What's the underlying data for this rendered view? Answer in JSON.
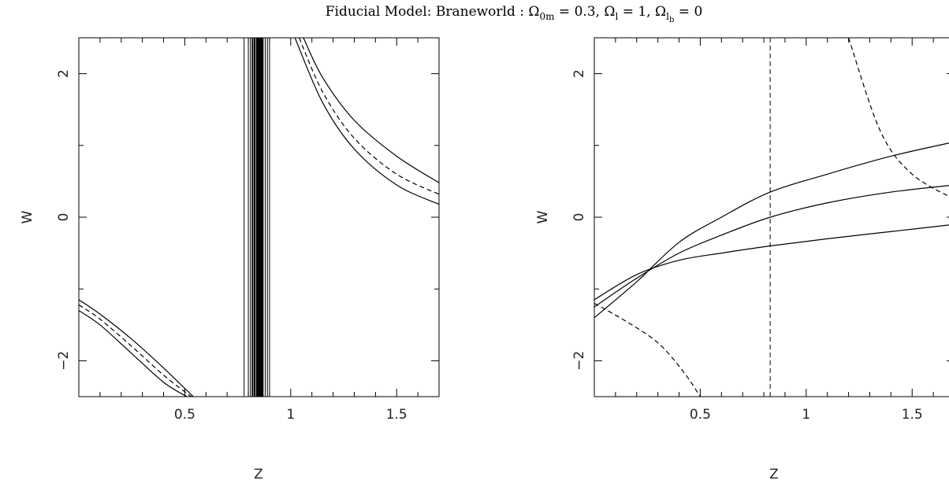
{
  "title": "Fiducial Model: Braneworld : Ω0m = 0.3, Ωl = 1, Ωlb = 0",
  "chart_data": [
    {
      "type": "line",
      "panel": "left",
      "xlabel": "Z",
      "ylabel": "W",
      "xlim": [
        0.0,
        1.7
      ],
      "ylim": [
        -2.5,
        2.5
      ],
      "xticks": [
        0.5,
        1,
        1.5
      ],
      "xtick_labels": [
        "0.5",
        "1",
        "1.5"
      ],
      "yticks": [
        -2,
        0,
        2
      ],
      "ytick_labels": [
        "−2",
        "0",
        "2"
      ],
      "grid": false,
      "series": [
        {
          "style": "solid",
          "x": [
            1.06,
            1.15,
            1.3,
            1.5,
            1.7
          ],
          "y": [
            2.5,
            1.95,
            1.35,
            0.85,
            0.48
          ]
        },
        {
          "style": "dashed",
          "x": [
            1.04,
            1.15,
            1.3,
            1.5,
            1.7
          ],
          "y": [
            2.5,
            1.75,
            1.1,
            0.6,
            0.32
          ]
        },
        {
          "style": "solid",
          "x": [
            1.02,
            1.15,
            1.3,
            1.5,
            1.7
          ],
          "y": [
            2.5,
            1.6,
            0.95,
            0.45,
            0.18
          ]
        },
        {
          "style": "solid",
          "x": [
            0.0,
            0.1,
            0.25,
            0.4,
            0.54
          ],
          "y": [
            -1.15,
            -1.35,
            -1.7,
            -2.1,
            -2.5
          ]
        },
        {
          "style": "dashed",
          "x": [
            0.0,
            0.1,
            0.25,
            0.4,
            0.53
          ],
          "y": [
            -1.22,
            -1.42,
            -1.8,
            -2.2,
            -2.5
          ]
        },
        {
          "style": "solid",
          "x": [
            0.0,
            0.1,
            0.25,
            0.4,
            0.51
          ],
          "y": [
            -1.3,
            -1.5,
            -1.9,
            -2.3,
            -2.5
          ]
        }
      ],
      "vertical_band": {
        "x_min": 0.78,
        "x_max": 0.9,
        "lines": [
          0.78,
          0.8,
          0.81,
          0.82,
          0.83,
          0.84,
          0.845,
          0.85,
          0.855,
          0.86,
          0.865,
          0.87,
          0.88,
          0.89,
          0.9
        ]
      }
    },
    {
      "type": "line",
      "panel": "right",
      "xlabel": "Z",
      "ylabel": "W",
      "xlim": [
        0.0,
        1.7
      ],
      "ylim": [
        -2.5,
        2.5
      ],
      "xticks": [
        0.5,
        1,
        1.5
      ],
      "xtick_labels": [
        "0.5",
        "1",
        "1.5"
      ],
      "yticks": [
        -2,
        0,
        2
      ],
      "ytick_labels": [
        "−2",
        "0",
        "2"
      ],
      "grid": false,
      "series": [
        {
          "style": "solid",
          "x": [
            0.0,
            0.2,
            0.4,
            0.6,
            0.83,
            1.1,
            1.4,
            1.7
          ],
          "y": [
            -1.4,
            -0.9,
            -0.35,
            0.0,
            0.35,
            0.6,
            0.85,
            1.05
          ]
        },
        {
          "style": "solid",
          "x": [
            0.0,
            0.2,
            0.4,
            0.6,
            0.83,
            1.1,
            1.4,
            1.7
          ],
          "y": [
            -1.25,
            -0.85,
            -0.5,
            -0.25,
            0.0,
            0.2,
            0.35,
            0.45
          ]
        },
        {
          "style": "solid",
          "x": [
            0.0,
            0.2,
            0.4,
            0.6,
            0.83,
            1.1,
            1.4,
            1.7
          ],
          "y": [
            -1.15,
            -0.8,
            -0.6,
            -0.5,
            -0.4,
            -0.3,
            -0.2,
            -0.1
          ]
        },
        {
          "style": "dashed",
          "x": [
            1.2,
            1.35,
            1.5,
            1.7
          ],
          "y": [
            2.5,
            1.2,
            0.6,
            0.25
          ]
        },
        {
          "style": "dashed",
          "x": [
            0.0,
            0.15,
            0.3,
            0.42,
            0.5
          ],
          "y": [
            -1.2,
            -1.45,
            -1.75,
            -2.15,
            -2.5
          ]
        }
      ],
      "vline": {
        "x": 0.83,
        "style": "dashed"
      }
    }
  ]
}
